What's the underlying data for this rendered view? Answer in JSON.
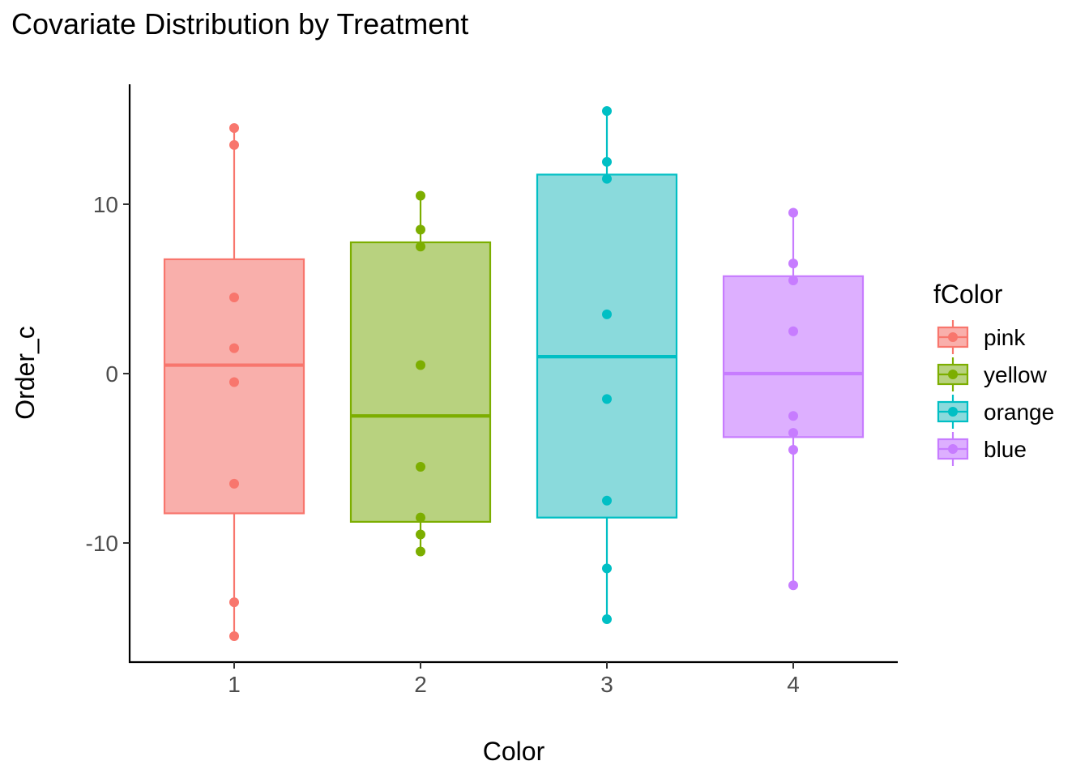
{
  "chart_data": {
    "type": "boxplot",
    "title": "Covariate Distribution by Treatment",
    "xlabel": "Color",
    "ylabel": "Order_c",
    "categories": [
      "1",
      "2",
      "3",
      "4"
    ],
    "y_ticks": [
      -10,
      0,
      10
    ],
    "ylim": [
      -16.5,
      16.5
    ],
    "grid": false,
    "legend": {
      "title": "fColor",
      "position": "right",
      "entries": [
        "pink",
        "yellow",
        "orange",
        "blue"
      ]
    },
    "series": [
      {
        "name": "pink",
        "color": "#F8766D",
        "fill": "#F9AFAB",
        "box": {
          "q1": -8.25,
          "median": 0.5,
          "q3": 6.75,
          "whisker_low": -15.5,
          "whisker_high": 14.5
        },
        "points": [
          14.5,
          13.5,
          4.5,
          1.5,
          -0.5,
          -6.5,
          -13.5,
          -15.5
        ]
      },
      {
        "name": "yellow",
        "color": "#7CAE00",
        "fill": "#B8D27F",
        "box": {
          "q1": -8.75,
          "median": -2.5,
          "q3": 7.75,
          "whisker_low": -10.5,
          "whisker_high": 10.5
        },
        "points": [
          10.5,
          8.5,
          7.5,
          0.5,
          -5.5,
          -8.5,
          -9.5,
          -10.5
        ]
      },
      {
        "name": "orange",
        "color": "#00BFC4",
        "fill": "#8ADADC",
        "box": {
          "q1": -8.5,
          "median": 1.0,
          "q3": 11.75,
          "whisker_low": -14.5,
          "whisker_high": 15.5
        },
        "points": [
          15.5,
          12.5,
          11.5,
          3.5,
          -1.5,
          -7.5,
          -11.5,
          -14.5
        ]
      },
      {
        "name": "blue",
        "color": "#C77CFF",
        "fill": "#DDAFFF",
        "box": {
          "q1": -3.75,
          "median": 0.0,
          "q3": 5.75,
          "whisker_low": -12.5,
          "whisker_high": 9.5
        },
        "points": [
          9.5,
          6.5,
          5.5,
          2.5,
          -2.5,
          -3.5,
          -4.5,
          -12.5
        ]
      }
    ]
  }
}
